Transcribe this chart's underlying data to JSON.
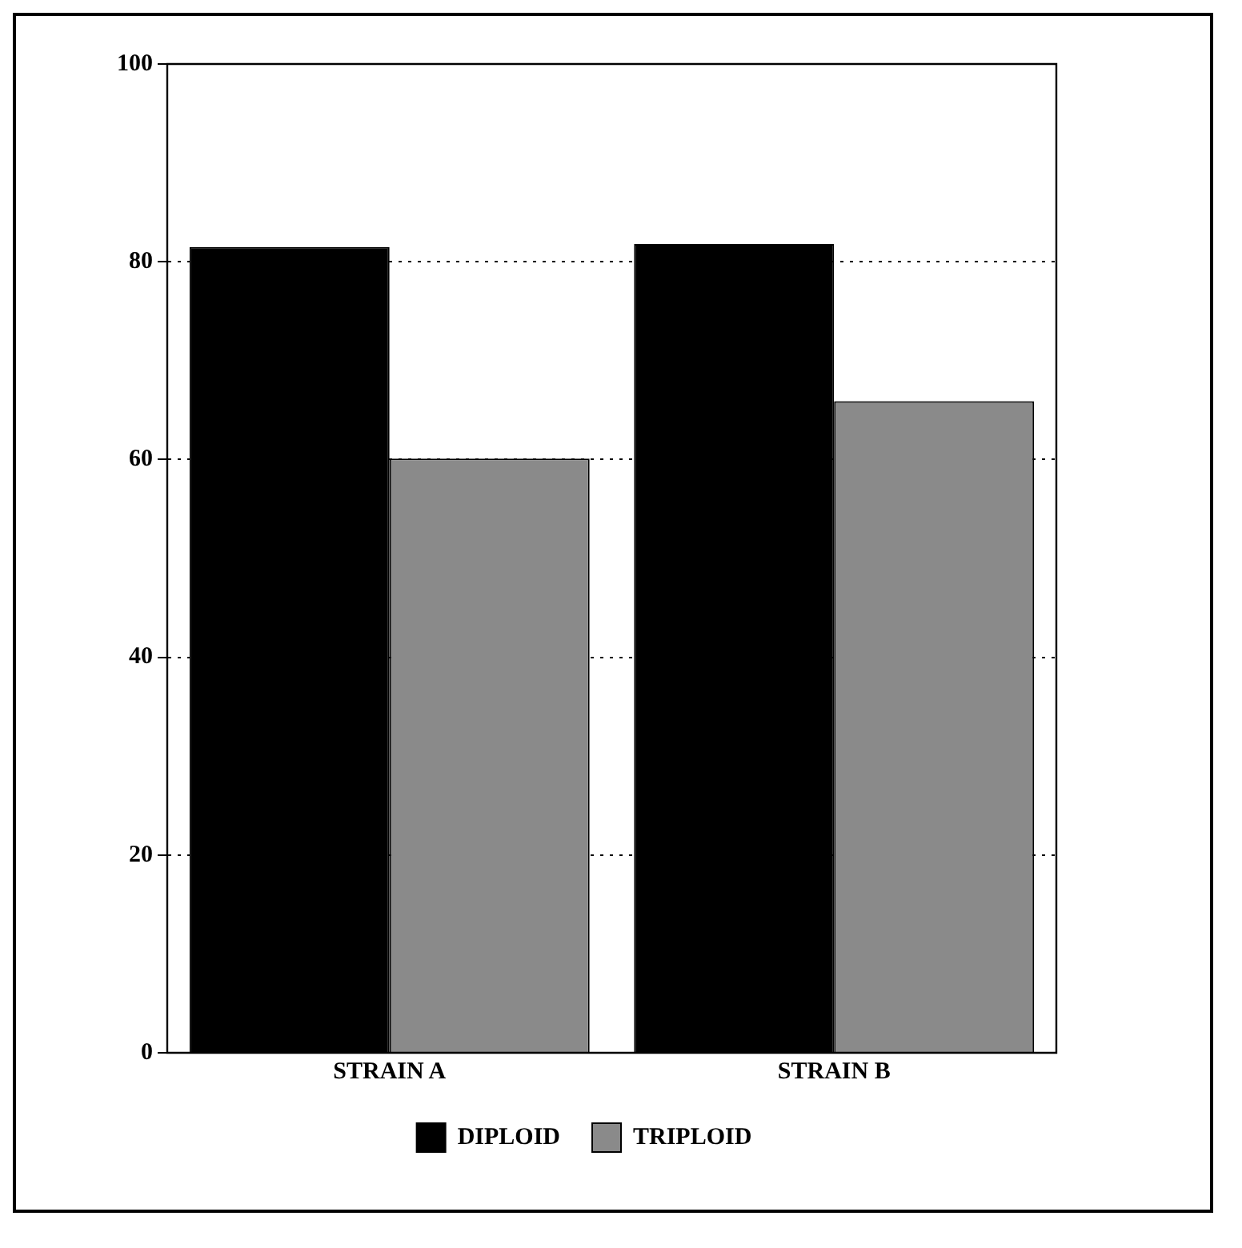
{
  "chart_data": {
    "type": "bar",
    "categories": [
      "STRAIN A",
      "STRAIN B"
    ],
    "series": [
      {
        "name": "DIPLOID",
        "color": "#000000",
        "values": [
          81.5,
          81.8
        ]
      },
      {
        "name": "TRIPLOID",
        "color": "#8a8a8a",
        "values": [
          60.1,
          65.9
        ]
      }
    ],
    "ylim": [
      0,
      100
    ],
    "yticks": [
      0,
      20,
      40,
      60,
      80,
      100
    ],
    "grid": "y",
    "legend": "bottom"
  }
}
